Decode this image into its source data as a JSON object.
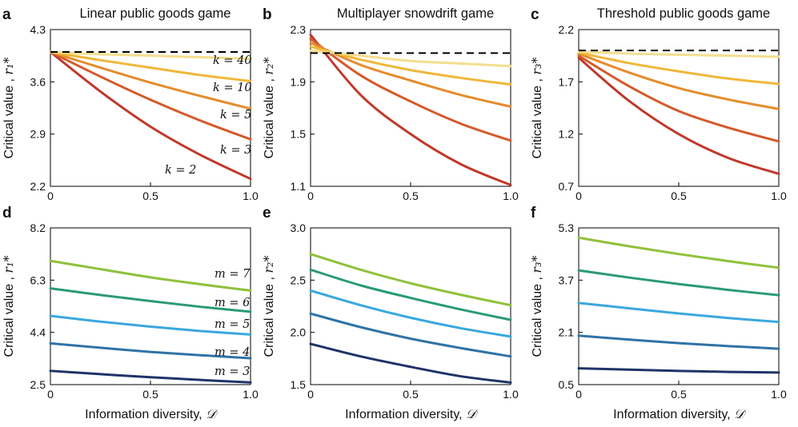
{
  "chart_data": [
    {
      "id": "a",
      "type": "line",
      "panel_label": "a",
      "title": "Linear public goods game",
      "xlabel": "",
      "ylabel_text": "Critical value ,",
      "ylabel_symbol": "r₁*",
      "xlim": [
        0,
        1
      ],
      "ylim": [
        2.2,
        4.3
      ],
      "x_ticks": [
        "0",
        "0.5",
        "1.0"
      ],
      "y_ticks": [
        "2.2",
        "2.9",
        "3.6",
        "4.3"
      ],
      "reference_line": 4.0,
      "x": [
        0,
        0.25,
        0.5,
        0.75,
        1.0
      ],
      "series": [
        {
          "name": "k = 2",
          "color": "#c0392b",
          "values": [
            4.0,
            3.47,
            3.0,
            2.62,
            2.3
          ]
        },
        {
          "name": "k = 3",
          "color": "#d35a2a",
          "values": [
            4.0,
            3.67,
            3.36,
            3.08,
            2.83
          ]
        },
        {
          "name": "k = 5",
          "color": "#e58c2c",
          "values": [
            4.0,
            3.79,
            3.59,
            3.41,
            3.24
          ]
        },
        {
          "name": "k = 10",
          "color": "#f0b73a",
          "values": [
            4.0,
            3.89,
            3.79,
            3.69,
            3.61
          ]
        },
        {
          "name": "k = 40",
          "color": "#f4de8e",
          "values": [
            4.0,
            3.97,
            3.95,
            3.93,
            3.91
          ]
        }
      ],
      "annotations": [
        "k = 40",
        "k = 10",
        "k = 5",
        "k = 3",
        "k = 2"
      ]
    },
    {
      "id": "b",
      "type": "line",
      "panel_label": "b",
      "title": "Multiplayer snowdrift game",
      "xlabel": "",
      "ylabel_text": "Critical value ,",
      "ylabel_symbol": "r₂*",
      "xlim": [
        0,
        1
      ],
      "ylim": [
        1.1,
        2.3
      ],
      "x_ticks": [
        "0",
        "0.5",
        "1.0"
      ],
      "y_ticks": [
        "1.1",
        "1.5",
        "1.9",
        "2.3"
      ],
      "reference_line": 2.12,
      "x": [
        0,
        0.25,
        0.5,
        0.75,
        1.0
      ],
      "series": [
        {
          "name": "k = 2",
          "color": "#c0392b",
          "values": [
            2.26,
            1.8,
            1.5,
            1.27,
            1.11
          ]
        },
        {
          "name": "k = 3",
          "color": "#d35a2a",
          "values": [
            2.23,
            1.95,
            1.75,
            1.58,
            1.45
          ]
        },
        {
          "name": "k = 5",
          "color": "#e58c2c",
          "values": [
            2.2,
            2.03,
            1.91,
            1.8,
            1.71
          ]
        },
        {
          "name": "k = 10",
          "color": "#f0b73a",
          "values": [
            2.17,
            2.07,
            1.99,
            1.93,
            1.88
          ]
        },
        {
          "name": "k = 40",
          "color": "#f4de8e",
          "values": [
            2.14,
            2.1,
            2.06,
            2.04,
            2.02
          ]
        }
      ]
    },
    {
      "id": "c",
      "type": "line",
      "panel_label": "c",
      "title": "Threshold public goods game",
      "xlabel": "",
      "ylabel_text": "Critical value ,",
      "ylabel_symbol": "r₃*",
      "xlim": [
        0,
        1
      ],
      "ylim": [
        0.7,
        2.2
      ],
      "x_ticks": [
        "0",
        "0.5",
        "1.0"
      ],
      "y_ticks": [
        "0.7",
        "1.2",
        "1.7",
        "2.2"
      ],
      "reference_line": 2.0,
      "x": [
        0,
        0.25,
        0.5,
        0.75,
        1.0
      ],
      "series": [
        {
          "name": "k = 2",
          "color": "#c0392b",
          "values": [
            1.93,
            1.52,
            1.2,
            0.97,
            0.82
          ]
        },
        {
          "name": "k = 3",
          "color": "#d35a2a",
          "values": [
            1.95,
            1.66,
            1.42,
            1.26,
            1.13
          ]
        },
        {
          "name": "k = 5",
          "color": "#e58c2c",
          "values": [
            1.97,
            1.79,
            1.64,
            1.53,
            1.44
          ]
        },
        {
          "name": "k = 10",
          "color": "#f0b73a",
          "values": [
            1.98,
            1.88,
            1.8,
            1.73,
            1.68
          ]
        },
        {
          "name": "k = 40",
          "color": "#f4de8e",
          "values": [
            1.99,
            1.97,
            1.96,
            1.95,
            1.94
          ]
        }
      ]
    },
    {
      "id": "d",
      "type": "line",
      "panel_label": "d",
      "title": "",
      "xlabel": "Information diversity,",
      "xlabel_symbol": "𝒟",
      "ylabel_text": "Critical value ,",
      "ylabel_symbol": "r₁*",
      "xlim": [
        0,
        1
      ],
      "ylim": [
        2.5,
        8.2
      ],
      "x_ticks": [
        "0",
        "0.5",
        "1.0"
      ],
      "y_ticks": [
        "2.5",
        "4.4",
        "6.3",
        "8.2"
      ],
      "x": [
        0,
        0.25,
        0.5,
        0.75,
        1.0
      ],
      "series": [
        {
          "name": "m = 7",
          "color": "#8fc13a",
          "values": [
            7.0,
            6.7,
            6.4,
            6.15,
            5.92
          ]
        },
        {
          "name": "m = 6",
          "color": "#2a9a78",
          "values": [
            6.0,
            5.76,
            5.54,
            5.33,
            5.15
          ]
        },
        {
          "name": "m = 5",
          "color": "#3aa8de",
          "values": [
            5.0,
            4.79,
            4.61,
            4.45,
            4.32
          ]
        },
        {
          "name": "m = 4",
          "color": "#2f73a6",
          "values": [
            4.0,
            3.84,
            3.69,
            3.57,
            3.46
          ]
        },
        {
          "name": "m = 3",
          "color": "#1f3367",
          "values": [
            3.0,
            2.88,
            2.77,
            2.67,
            2.58
          ]
        }
      ],
      "annotations": [
        "m = 7",
        "m = 6",
        "m = 5",
        "m = 4",
        "m = 3"
      ]
    },
    {
      "id": "e",
      "type": "line",
      "panel_label": "e",
      "title": "",
      "xlabel": "Information diversity,",
      "xlabel_symbol": "𝒟",
      "ylabel_text": "Critical value ,",
      "ylabel_symbol": "r₂*",
      "xlim": [
        0,
        1
      ],
      "ylim": [
        1.5,
        3.0
      ],
      "x_ticks": [
        "0",
        "0.5",
        "1.0"
      ],
      "y_ticks": [
        "1.5",
        "2.0",
        "2.5",
        "3.0"
      ],
      "x": [
        0,
        0.25,
        0.5,
        0.75,
        1.0
      ],
      "series": [
        {
          "name": "m = 7",
          "color": "#8fc13a",
          "values": [
            2.75,
            2.6,
            2.47,
            2.36,
            2.26
          ]
        },
        {
          "name": "m = 6",
          "color": "#2a9a78",
          "values": [
            2.6,
            2.45,
            2.33,
            2.22,
            2.12
          ]
        },
        {
          "name": "m = 5",
          "color": "#3aa8de",
          "values": [
            2.4,
            2.26,
            2.14,
            2.04,
            1.96
          ]
        },
        {
          "name": "m = 4",
          "color": "#2f73a6",
          "values": [
            2.18,
            2.05,
            1.94,
            1.85,
            1.77
          ]
        },
        {
          "name": "m = 3",
          "color": "#1f3367",
          "values": [
            1.89,
            1.77,
            1.67,
            1.58,
            1.52
          ]
        }
      ]
    },
    {
      "id": "f",
      "type": "line",
      "panel_label": "f",
      "title": "",
      "xlabel": "Information diversity,",
      "xlabel_symbol": "𝒟",
      "ylabel_text": "Critical value ,",
      "ylabel_symbol": "r₃*",
      "xlim": [
        0,
        1
      ],
      "ylim": [
        0.5,
        5.3
      ],
      "x_ticks": [
        "0",
        "0.5",
        "1.0"
      ],
      "y_ticks": [
        "0.5",
        "2.1",
        "3.7",
        "5.3"
      ],
      "x": [
        0,
        0.25,
        0.5,
        0.75,
        1.0
      ],
      "series": [
        {
          "name": "m = 7",
          "color": "#8fc13a",
          "values": [
            5.0,
            4.74,
            4.5,
            4.28,
            4.08
          ]
        },
        {
          "name": "m = 6",
          "color": "#2a9a78",
          "values": [
            4.0,
            3.78,
            3.58,
            3.4,
            3.24
          ]
        },
        {
          "name": "m = 5",
          "color": "#3aa8de",
          "values": [
            3.0,
            2.84,
            2.68,
            2.54,
            2.42
          ]
        },
        {
          "name": "m = 4",
          "color": "#2f73a6",
          "values": [
            2.0,
            1.88,
            1.77,
            1.68,
            1.6
          ]
        },
        {
          "name": "m = 3",
          "color": "#1f3367",
          "values": [
            1.0,
            0.96,
            0.92,
            0.89,
            0.87
          ]
        }
      ]
    }
  ]
}
